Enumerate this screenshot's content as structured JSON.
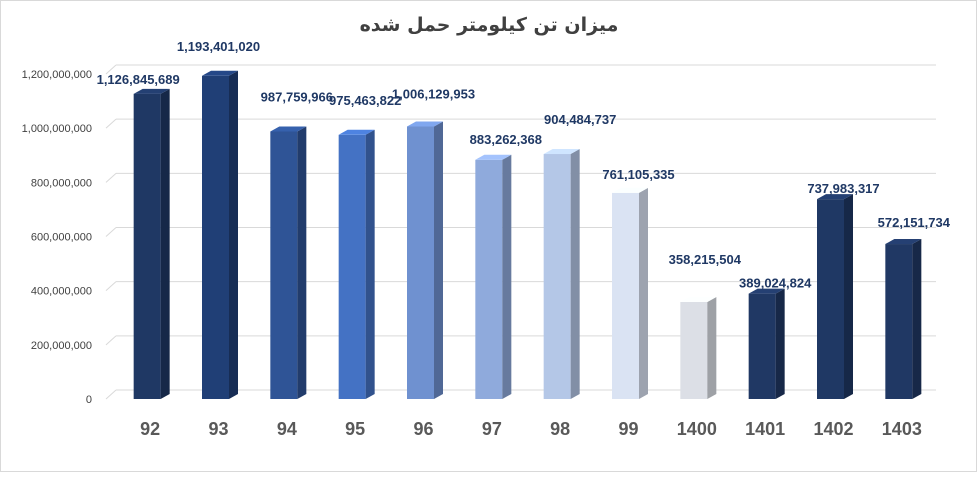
{
  "chart_data": {
    "type": "bar",
    "title": "میزان تن کیلومتر حمل شده",
    "xlabel": "",
    "ylabel": "",
    "categories": [
      "92",
      "93",
      "94",
      "95",
      "96",
      "97",
      "98",
      "99",
      "1400",
      "1401",
      "1402",
      "1403"
    ],
    "values": [
      1126845689,
      1193401020,
      987759966,
      975463822,
      1006129953,
      883262368,
      904484737,
      761105335,
      358215504,
      389024824,
      737983317,
      572151734
    ],
    "data_labels": [
      "1,126,845,689",
      "1,193,401,020",
      "987,759,966",
      "975,463,822",
      "1,006,129,953",
      "883,262,368",
      "904,484,737",
      "761,105,335",
      "358,215,504",
      "389,024,824",
      "737,983,317",
      "572,151,734"
    ],
    "ylim": [
      0,
      1200000000
    ],
    "yticks": [
      0,
      200000000,
      400000000,
      600000000,
      800000000,
      1000000000,
      1200000000
    ],
    "ytick_labels": [
      "0",
      "200,000,000",
      "400,000,000",
      "600,000,000",
      "800,000,000",
      "1,000,000,000",
      "1,200,000,000"
    ],
    "grid": true,
    "legend": "none",
    "bar_colors": [
      "#1f3864",
      "#203f76",
      "#2f5496",
      "#4472c4",
      "#6f91d0",
      "#8faadc",
      "#b4c7e7",
      "#dae3f3",
      "#dcdfe6",
      "#203864",
      "#1f3864",
      "#203864"
    ]
  }
}
